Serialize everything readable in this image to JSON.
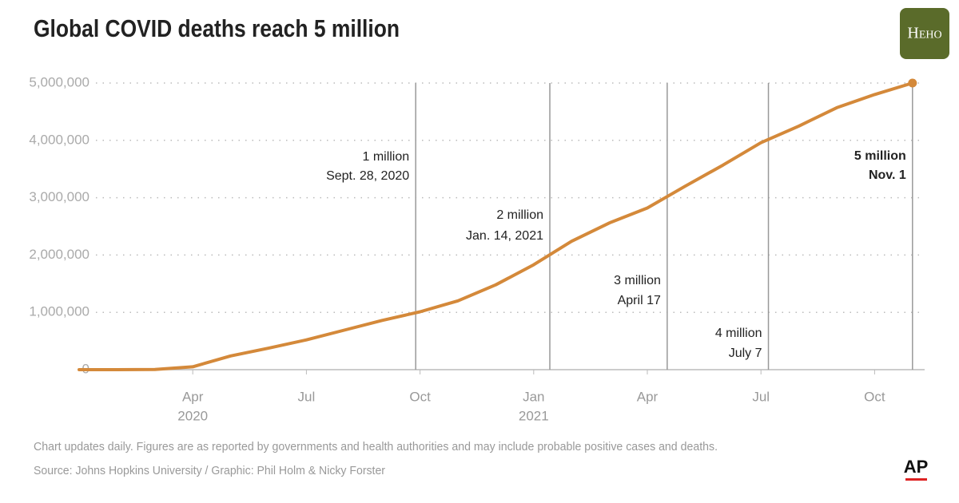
{
  "chart_data": {
    "type": "line",
    "title": "Global COVID deaths reach 5 million",
    "x": [
      "2020-01",
      "2020-02",
      "2020-03",
      "2020-04",
      "2020-05",
      "2020-06",
      "2020-07",
      "2020-08",
      "2020-09",
      "2020-10",
      "2020-11",
      "2020-12",
      "2021-01",
      "2021-02",
      "2021-03",
      "2021-04",
      "2021-05",
      "2021-06",
      "2021-07",
      "2021-08",
      "2021-09",
      "2021-10",
      "2021-11"
    ],
    "series": [
      {
        "name": "Global COVID deaths",
        "color": "#d4893a",
        "values": [
          0,
          0,
          3000,
          50000,
          240000,
          375000,
          520000,
          690000,
          860000,
          1010000,
          1200000,
          1480000,
          1830000,
          2240000,
          2560000,
          2820000,
          3200000,
          3570000,
          3960000,
          4250000,
          4570000,
          4800000,
          5000000
        ]
      }
    ],
    "ylim": [
      0,
      5000000
    ],
    "yticks": [
      0,
      {
        "value": 1000000,
        "label": "1,000,000"
      },
      {
        "value": 2000000,
        "label": "2,000,000"
      },
      {
        "value": 3000000,
        "label": "3,000,000"
      },
      {
        "value": 4000000,
        "label": "4,000,000"
      },
      {
        "value": 5000000,
        "label": "5,000,000"
      }
    ],
    "xticks": [
      {
        "value": "2020-04",
        "label": "Apr",
        "year": "2020"
      },
      {
        "value": "2020-07",
        "label": "Jul"
      },
      {
        "value": "2020-10",
        "label": "Oct"
      },
      {
        "value": "2021-01",
        "label": "Jan",
        "year": "2021"
      },
      {
        "value": "2021-04",
        "label": "Apr"
      },
      {
        "value": "2021-07",
        "label": "Jul"
      },
      {
        "value": "2021-10",
        "label": "Oct"
      }
    ],
    "grid": true,
    "annotations": [
      {
        "text": "1 million",
        "date": "Sept. 28, 2020",
        "x": "2020-09-28"
      },
      {
        "text": "2 million",
        "date": "Jan. 14, 2021",
        "x": "2021-01-14"
      },
      {
        "text": "3 million",
        "date": "April 17",
        "x": "2021-04-17"
      },
      {
        "text": "4 million",
        "date": "July 7",
        "x": "2021-07-07"
      },
      {
        "text": "5 million",
        "date": "Nov. 1",
        "x": "2021-11-01"
      }
    ],
    "note": "Chart updates daily. Figures are as reported by governments and health authorities and may include probable positive cases and deaths.",
    "source": "Source: Johns Hopkins University / Graphic: Phil Holm & Nicky Forster",
    "logos": [
      "Heho",
      "AP"
    ]
  }
}
